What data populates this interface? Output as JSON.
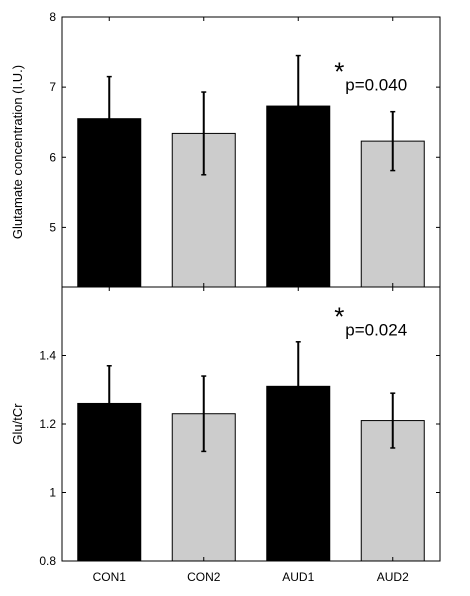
{
  "chart_data": [
    {
      "type": "bar",
      "categories": [
        "CON1",
        "CON2",
        "AUD1",
        "AUD2"
      ],
      "values": [
        6.55,
        6.34,
        6.73,
        6.23
      ],
      "errors": [
        0.6,
        0.59,
        0.72,
        0.42
      ],
      "bar_colors": [
        "#000000",
        "#cccccc",
        "#000000",
        "#cccccc"
      ],
      "ylabel": "Glutamate concentration (I.U.)",
      "ylim": [
        4.15,
        8
      ],
      "yticks": [
        5,
        6,
        7,
        8
      ],
      "ytick_labels": [
        "5",
        "6",
        "7",
        "8"
      ],
      "show_xticklabels": false,
      "annotation": {
        "star": "*",
        "text": "p=0.040",
        "anchor_category": "AUD1",
        "anchor_value": 7.15
      },
      "grid": false
    },
    {
      "type": "bar",
      "categories": [
        "CON1",
        "CON2",
        "AUD1",
        "AUD2"
      ],
      "values": [
        1.26,
        1.23,
        1.31,
        1.21
      ],
      "errors": [
        0.11,
        0.11,
        0.13,
        0.08
      ],
      "bar_colors": [
        "#000000",
        "#cccccc",
        "#000000",
        "#cccccc"
      ],
      "ylabel": "Glu/tCr",
      "ylim": [
        0.8,
        1.6
      ],
      "yticks": [
        0.8,
        1,
        1.2,
        1.4
      ],
      "ytick_labels": [
        "0.8",
        "1",
        "1.2",
        "1.4"
      ],
      "show_xticklabels": true,
      "annotation": {
        "star": "*",
        "text": "p=0.024",
        "anchor_category": "AUD1",
        "anchor_value": 1.5
      },
      "grid": false
    }
  ]
}
